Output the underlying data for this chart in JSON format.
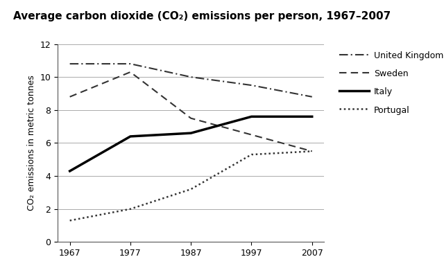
{
  "title": "Average carbon dioxide (CO₂) emissions per person, 1967–2007",
  "ylabel": "CO₂ emissions in metric tonnes",
  "years": [
    1967,
    1977,
    1987,
    1997,
    2007
  ],
  "series": {
    "United Kingdom": {
      "values": [
        10.8,
        10.8,
        10.0,
        9.5,
        8.8
      ],
      "linestyle": "dashdot",
      "linewidth": 1.5,
      "color": "#333333"
    },
    "Sweden": {
      "values": [
        8.8,
        10.3,
        7.5,
        6.5,
        5.5
      ],
      "linestyle": "dashed",
      "linewidth": 1.5,
      "color": "#333333"
    },
    "Italy": {
      "values": [
        4.3,
        6.4,
        6.6,
        7.6,
        7.6
      ],
      "linestyle": "solid",
      "linewidth": 2.5,
      "color": "#000000"
    },
    "Portugal": {
      "values": [
        1.3,
        2.0,
        3.2,
        5.3,
        5.5
      ],
      "linestyle": "dotted",
      "linewidth": 1.8,
      "color": "#333333"
    }
  },
  "ylim": [
    0,
    12
  ],
  "yticks": [
    0,
    2,
    4,
    6,
    8,
    10,
    12
  ],
  "xticks": [
    1967,
    1977,
    1987,
    1997,
    2007
  ],
  "grid_color": "#aaaaaa",
  "background_color": "#ffffff",
  "title_fontsize": 11,
  "label_fontsize": 9,
  "tick_fontsize": 9,
  "legend_fontsize": 9
}
